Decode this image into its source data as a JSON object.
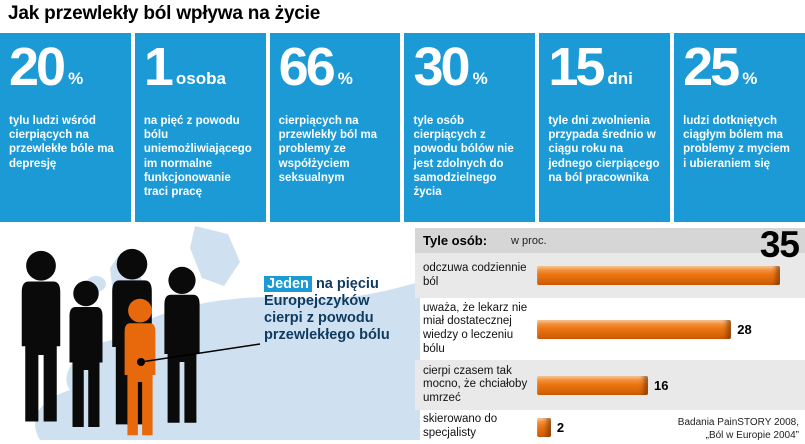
{
  "title": "Jak przewlekły ból wpływa na życie",
  "stats": [
    {
      "value": "20",
      "unit": "%",
      "desc": "tylu ludzi wśród cierpiących na przewlekłe bóle ma depresję"
    },
    {
      "value": "1",
      "unit": "osoba",
      "desc": "na pięć z powodu bólu uniemożliwiającego im normalne funkcjonowanie traci pracę"
    },
    {
      "value": "66",
      "unit": "%",
      "desc": "cierpiących na przewlekły ból ma problemy ze współżyciem seksualnym"
    },
    {
      "value": "30",
      "unit": "%",
      "desc": "tyle osób cierpiących z powodu bólów nie jest zdolnych do samodzielnego życia"
    },
    {
      "value": "15",
      "unit": "dni",
      "desc": "tyle dni zwolnienia przypada średnio w ciągu roku na jednego cierpiącego na ból pracownika"
    },
    {
      "value": "25",
      "unit": "%",
      "desc": "ludzi dotkniętych ciągłym bólem ma problemy z myciem i ubieraniem się"
    }
  ],
  "map_annotation": {
    "highlight": "Jeden",
    "rest": "na pięciu Europejczyków cierpi z powodu przewlekłego bólu"
  },
  "chart_data": {
    "type": "bar",
    "title": "Tyle osób:",
    "unit_label": "w proc.",
    "categories": [
      "odczuwa codziennie ból",
      "uważa, że lekarz nie miał dostatecznej wiedzy o leczeniu bólu",
      "cierpi czasem tak mocno, że chciałoby umrzeć",
      "skierowano do specjalisty"
    ],
    "values": [
      35,
      28,
      16,
      2
    ],
    "max": 35,
    "xlim": [
      0,
      35
    ],
    "orientation": "horizontal",
    "legend_position": "none",
    "source_line1": "Badania PainSTORY 2008,",
    "source_line2": "„Ból w Europie 2004”"
  },
  "colors": {
    "box_blue": "#1b9ad6",
    "bar_orange": "#ec7512",
    "map_blue": "#cfe1f0",
    "silhouette_black": "#0a0a0a",
    "silhouette_orange": "#e8680c"
  }
}
